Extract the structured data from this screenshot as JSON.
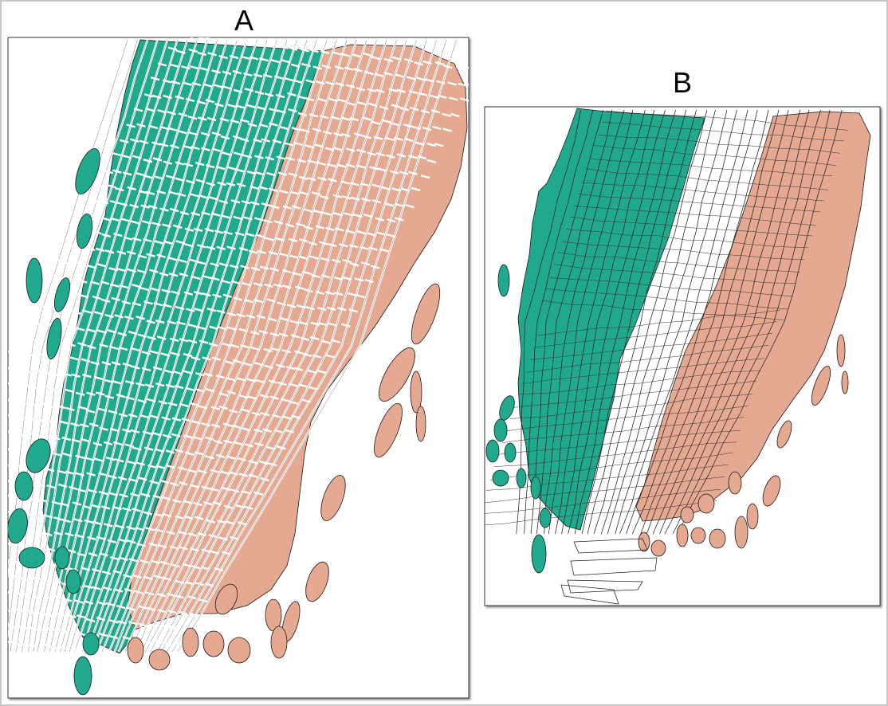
{
  "panels": [
    {
      "label": "A"
    },
    {
      "label": "B"
    }
  ],
  "colors": {
    "left_region": "#21a98d",
    "right_region": "#e5a890",
    "outline": "#1a1a1a",
    "cell_wall": "#ffffff",
    "frame": "#c8c8c8"
  }
}
